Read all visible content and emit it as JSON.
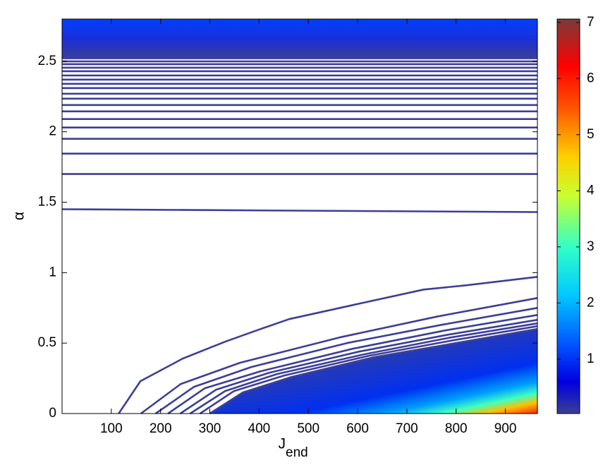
{
  "chart_data": {
    "type": "contour",
    "xlabel": "J",
    "xlabel_subscript": "end",
    "ylabel": "α",
    "xlim": [
      0,
      965
    ],
    "ylim": [
      0,
      2.8
    ],
    "xticks": [
      100,
      200,
      300,
      400,
      500,
      600,
      700,
      800,
      900
    ],
    "yticks": [
      0,
      0.5,
      1,
      1.5,
      2,
      2.5
    ],
    "series": [
      {
        "color": "#3c3f96",
        "x": [
          0,
          965
        ],
        "values": [
          1.45,
          1.43
        ]
      },
      {
        "color": "#3c3f96",
        "x": [
          0,
          965
        ],
        "values": [
          1.7,
          1.7
        ]
      },
      {
        "color": "#3c3f96",
        "x": [
          0,
          965
        ],
        "values": [
          1.845,
          1.845
        ]
      },
      {
        "color": "#3c3f96",
        "x": [
          0,
          965
        ],
        "values": [
          1.95,
          1.95
        ]
      },
      {
        "color": "#3c3f96",
        "x": [
          0,
          965
        ],
        "values": [
          2.03,
          2.03
        ]
      },
      {
        "color": "#3c3f96",
        "x": [
          0,
          965
        ],
        "values": [
          2.09,
          2.09
        ]
      },
      {
        "color": "#3c3f96",
        "x": [
          0,
          965
        ],
        "values": [
          2.145,
          2.145
        ]
      },
      {
        "color": "#3c3f96",
        "x": [
          0,
          965
        ],
        "values": [
          2.19,
          2.19
        ]
      },
      {
        "color": "#3c3f96",
        "x": [
          0,
          965
        ],
        "values": [
          2.235,
          2.235
        ]
      },
      {
        "color": "#3c3f96",
        "x": [
          0,
          965
        ],
        "values": [
          2.27,
          2.27
        ]
      },
      {
        "color": "#3c3f96",
        "x": [
          0,
          965
        ],
        "values": [
          2.31,
          2.31
        ]
      },
      {
        "color": "#3c3f96",
        "x": [
          0,
          965
        ],
        "values": [
          2.34,
          2.34
        ]
      },
      {
        "color": "#3c3f96",
        "x": [
          0,
          965
        ],
        "values": [
          2.37,
          2.37
        ]
      },
      {
        "color": "#3c3f96",
        "x": [
          0,
          965
        ],
        "values": [
          2.4,
          2.4
        ]
      },
      {
        "color": "#3c3f96",
        "x": [
          0,
          965
        ],
        "values": [
          2.43,
          2.43
        ]
      },
      {
        "color": "#3c3f96",
        "x": [
          0,
          965
        ],
        "values": [
          2.455,
          2.455
        ]
      },
      {
        "color": "#3c3f96",
        "x": [
          0,
          965
        ],
        "values": [
          2.48,
          2.48
        ]
      },
      {
        "color": "#3c3f96",
        "x": [
          0,
          965
        ],
        "values": [
          2.5,
          2.5
        ]
      },
      {
        "color": "#3c3f96",
        "x": [
          115,
          159,
          245,
          331,
          403,
          461,
          590,
          734,
          820,
          965
        ],
        "values": [
          0,
          0.23,
          0.39,
          0.51,
          0.6,
          0.67,
          0.77,
          0.88,
          0.91,
          0.97
        ]
      },
      {
        "color": "#3c3f96",
        "x": [
          160,
          241,
          361,
          563,
          764,
          965
        ],
        "values": [
          0,
          0.21,
          0.36,
          0.54,
          0.69,
          0.82
        ]
      },
      {
        "color": "#3c3f96",
        "x": [
          190,
          268,
          384,
          578,
          771,
          965
        ],
        "values": [
          0,
          0.19,
          0.33,
          0.5,
          0.63,
          0.75
        ]
      },
      {
        "color": "#3c3f96",
        "x": [
          215,
          290,
          403,
          590,
          778,
          965
        ],
        "values": [
          0,
          0.18,
          0.3,
          0.46,
          0.59,
          0.7
        ]
      },
      {
        "color": "#3c3f96",
        "x": [
          240,
          313,
          421,
          603,
          784,
          965
        ],
        "values": [
          0,
          0.17,
          0.29,
          0.44,
          0.56,
          0.665
        ]
      },
      {
        "color": "#3c3f96",
        "x": [
          260,
          331,
          436,
          613,
          789,
          965
        ],
        "values": [
          0,
          0.16,
          0.28,
          0.42,
          0.54,
          0.64
        ]
      },
      {
        "color": "#3c3f96",
        "x": [
          280,
          349,
          451,
          623,
          794,
          965
        ],
        "values": [
          0,
          0.16,
          0.27,
          0.41,
          0.52,
          0.62
        ]
      },
      {
        "color": "#3c3f96",
        "x": [
          300,
          367,
          466,
          633,
          799,
          965
        ],
        "values": [
          0,
          0.15,
          0.26,
          0.4,
          0.5,
          0.6
        ]
      }
    ],
    "colorbar": {
      "lim": [
        0.03,
        7.06
      ],
      "ticks": [
        1,
        2,
        3,
        4,
        5,
        6,
        7
      ]
    }
  }
}
